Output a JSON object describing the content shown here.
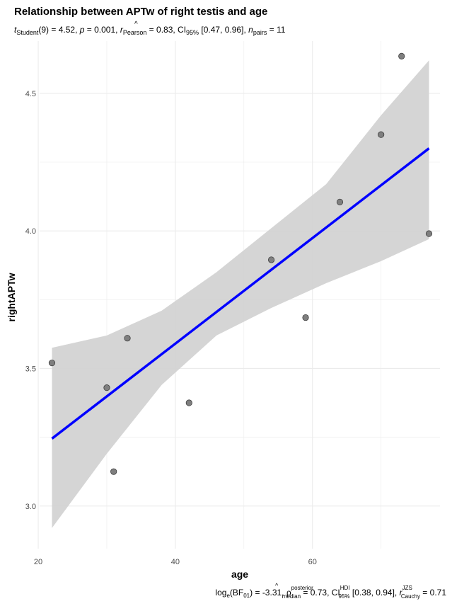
{
  "chart_data": {
    "type": "scatter",
    "title": "Relationship between APTw of right testis and age",
    "subtitle": {
      "t_symbol": "t",
      "t_sub": "Student",
      "t_rest": "(9) = 4.52, ",
      "p_symbol": "p",
      "p_rest": " = 0.001, ",
      "r_hat": "^",
      "r_symbol": "r",
      "r_sub": "Pearson",
      "r_rest": " = 0.83, CI",
      "ci_sub": "95%",
      "ci_rest": " [0.47, 0.96], ",
      "n_symbol": "n",
      "n_sub": "pairs",
      "n_rest": " = 11"
    },
    "caption": {
      "log": "log",
      "log_sub": "e",
      "bf": "(BF",
      "bf_sub": "01",
      "bf_rest": ") = -3.31, ",
      "rho_hat": "^",
      "rho": "ρ",
      "rho_sup": "posterior",
      "rho_sub": "median",
      "rho_rest": " = 0.73, CI",
      "ci_sup": "HDI",
      "ci_sub": "95%",
      "ci_rest": " [0.38, 0.94], ",
      "r_symbol": "r",
      "r_sup": "JZS",
      "r_sub": "Cauchy",
      "r_rest": " = 0.71"
    },
    "xlabel": "age",
    "ylabel": "rightAPTw",
    "xlim": [
      20.2,
      78.6
    ],
    "ylim": [
      2.845,
      4.69
    ],
    "x_ticks": [
      20,
      40,
      60
    ],
    "x_tick_labels": [
      "20",
      "40",
      "60"
    ],
    "x_minor_ticks": [
      30,
      50,
      70
    ],
    "y_ticks": [
      3.0,
      3.5,
      4.0,
      4.5
    ],
    "y_tick_labels": [
      "3.0",
      "3.5",
      "4.0",
      "4.5"
    ],
    "y_minor_ticks": [
      3.25,
      3.75,
      4.25
    ],
    "grid": true,
    "points": [
      {
        "x": 22,
        "y": 3.52
      },
      {
        "x": 30,
        "y": 3.43
      },
      {
        "x": 31,
        "y": 3.125
      },
      {
        "x": 33,
        "y": 3.61
      },
      {
        "x": 42,
        "y": 3.375
      },
      {
        "x": 54,
        "y": 3.895
      },
      {
        "x": 59,
        "y": 3.685
      },
      {
        "x": 64,
        "y": 4.105
      },
      {
        "x": 70,
        "y": 4.35
      },
      {
        "x": 73,
        "y": 4.635
      },
      {
        "x": 77,
        "y": 3.99
      }
    ],
    "fit_line": {
      "x": [
        22,
        77
      ],
      "y": [
        3.245,
        4.3
      ]
    },
    "confidence_band": {
      "x": [
        22,
        30,
        38,
        46,
        54,
        62,
        70,
        77
      ],
      "lower": [
        2.92,
        3.19,
        3.44,
        3.62,
        3.72,
        3.81,
        3.89,
        3.97
      ],
      "upper": [
        3.575,
        3.62,
        3.71,
        3.85,
        4.01,
        4.17,
        4.42,
        4.62
      ]
    },
    "colors": {
      "point_fill": "#7f7f7f",
      "point_stroke": "#3f3f3f",
      "line": "#0000ff",
      "band": "#d3d3d3",
      "grid": "#ebebeb"
    }
  }
}
